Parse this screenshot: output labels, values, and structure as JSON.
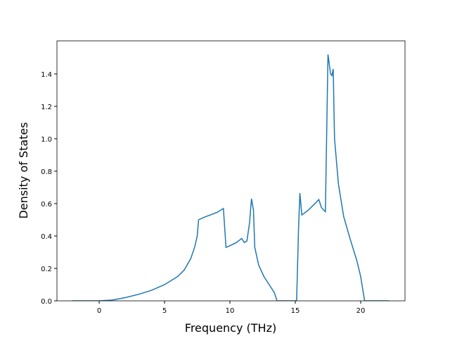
{
  "chart_data": {
    "type": "line",
    "xlabel": "Frequency (THz)",
    "ylabel": "Density of States",
    "x": [
      -2.1,
      0,
      1,
      2,
      3,
      4,
      5,
      6,
      6.5,
      7,
      7.3,
      7.5,
      7.6,
      8,
      9,
      9.5,
      9.7,
      10,
      10.5,
      10.9,
      11.1,
      11.3,
      11.5,
      11.65,
      11.8,
      11.9,
      12.2,
      12.6,
      13,
      13.4,
      13.6,
      15.1,
      15.25,
      15.35,
      15.5,
      16,
      16.5,
      16.8,
      17,
      17.3,
      17.5,
      17.7,
      17.8,
      17.9,
      18,
      18.3,
      18.7,
      19.2,
      19.7,
      20,
      20.2,
      20.3,
      22.15
    ],
    "series": [
      {
        "color": "#1f77b4",
        "values": [
          0,
          0,
          0.005,
          0.02,
          0.04,
          0.065,
          0.1,
          0.15,
          0.19,
          0.26,
          0.33,
          0.4,
          0.5,
          0.515,
          0.545,
          0.57,
          0.33,
          0.34,
          0.36,
          0.385,
          0.36,
          0.37,
          0.48,
          0.63,
          0.56,
          0.33,
          0.22,
          0.15,
          0.1,
          0.05,
          0,
          0,
          0.45,
          0.665,
          0.53,
          0.56,
          0.6,
          0.625,
          0.575,
          0.55,
          1.52,
          1.4,
          1.39,
          1.43,
          1.0,
          0.72,
          0.52,
          0.38,
          0.25,
          0.15,
          0.05,
          0,
          0
        ]
      }
    ],
    "xlim": [
      -3.23,
      23.39
    ],
    "ylim": [
      0,
      1.604
    ],
    "xticks": [
      0,
      5,
      10,
      15,
      20
    ],
    "yticks": [
      {
        "value": 0,
        "label": "0.0"
      },
      0.2,
      0.4,
      0.6,
      0.8,
      {
        "value": 1,
        "label": "1.0"
      },
      1.2,
      1.4
    ]
  }
}
